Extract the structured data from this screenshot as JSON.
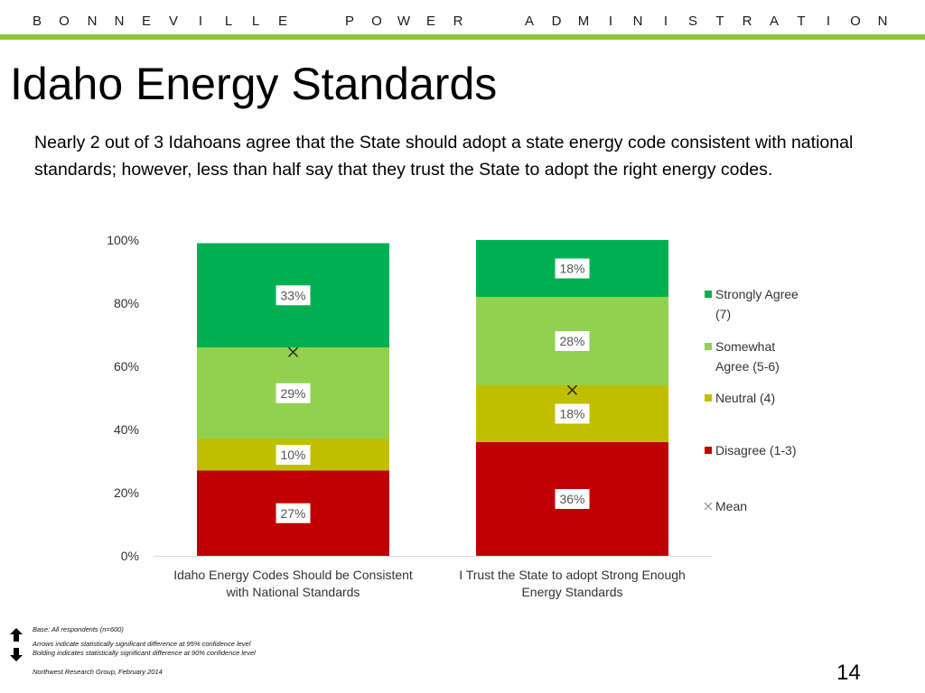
{
  "header": {
    "org_letters": [
      "B",
      "O",
      "N",
      "N",
      "E",
      "V",
      "I",
      "L",
      "L",
      "E",
      "P",
      "O",
      "W",
      "E",
      "R",
      "A",
      "D",
      "M",
      "I",
      "N",
      "I",
      "S",
      "T",
      "R",
      "A",
      "T",
      "I",
      "O",
      "N"
    ],
    "accent_color": "#8dc63f"
  },
  "slide": {
    "title": "Idaho Energy Standards",
    "body": "Nearly 2 out of 3 Idahoans agree that the State should adopt a state energy code consistent with national standards; however, less than half say that they trust the State to adopt the right energy codes."
  },
  "chart_data": {
    "type": "bar",
    "stacked": true,
    "categories": [
      [
        "Idaho Energy Codes Should be Consistent",
        "with National Standards"
      ],
      [
        "I Trust the State to adopt Strong Enough",
        "Energy Standards"
      ]
    ],
    "series": [
      {
        "name": "Disagree (1-3)",
        "color": "#c00000",
        "values": [
          27,
          36
        ],
        "labels": [
          "27%",
          "36%"
        ]
      },
      {
        "name": "Neutral (4)",
        "color": "#bfbf00",
        "values": [
          10,
          18
        ],
        "labels": [
          "10%",
          "18%"
        ]
      },
      {
        "name": "Somewhat Agree (5-6)",
        "legend_lines": [
          "Somewhat",
          "Agree (5-6)"
        ],
        "color": "#92d050",
        "values": [
          29,
          28
        ],
        "labels": [
          "29%",
          "28%"
        ]
      },
      {
        "name": "Strongly Agree (7)",
        "legend_lines": [
          "Strongly Agree",
          "(7)"
        ],
        "color": "#00b050",
        "values": [
          33,
          18
        ],
        "labels": [
          "33%",
          "18%"
        ]
      }
    ],
    "mean": {
      "name": "Mean",
      "values": [
        64.5,
        52.5
      ]
    },
    "ylim": [
      0,
      100
    ],
    "yticks": [
      0,
      20,
      40,
      60,
      80,
      100
    ],
    "ytick_labels": [
      "0%",
      "20%",
      "40%",
      "60%",
      "80%",
      "100%"
    ],
    "legend": "right",
    "grid": false
  },
  "footer": {
    "base": "Base: All respondents (n=600)",
    "arrows_note": "Arrows indicate statistically significant difference at 95% confidence level",
    "bolding_note": "Bolding indicates statistically significant difference at 90% confidence level",
    "source": "Northwest Research Group, February 2014",
    "page_number": "14"
  }
}
